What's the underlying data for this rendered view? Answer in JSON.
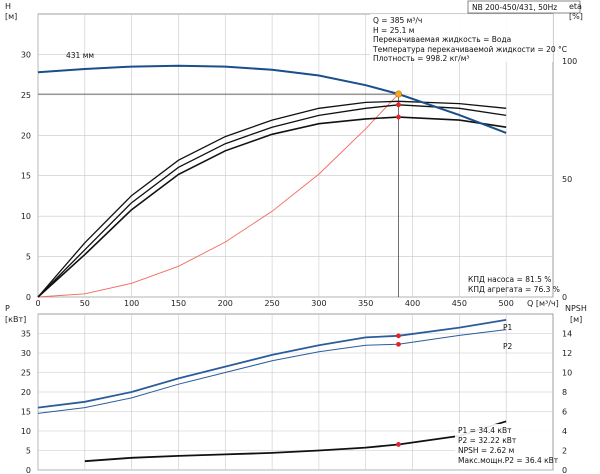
{
  "pump_model": "NB 200-450/431, 50Hz",
  "colors": {
    "head_curve": "#1a4f8a",
    "system_curve": "#f26a5c",
    "power_curve": "#2a5d9c",
    "eta_curve": "#111111",
    "npsh_curve": "#111111",
    "op_point": "#f5a623",
    "marker": "#e0242a",
    "grid": "#c8c8c8"
  },
  "chart_data": [
    {
      "type": "line",
      "id": "head_chart",
      "ylabel": "H",
      "yunit": "[м]",
      "y2label": "eta",
      "y2unit": "[%]",
      "xlabel": "Q [м³/ч]",
      "xlim": [
        0,
        550
      ],
      "ylim": [
        0,
        35
      ],
      "y2lim": [
        0,
        120
      ],
      "x_ticks": [
        0,
        50,
        100,
        150,
        200,
        250,
        300,
        350,
        400,
        450,
        500
      ],
      "y_ticks": [
        0,
        5,
        10,
        15,
        20,
        25,
        30
      ],
      "y2_ticks": [
        0,
        50,
        100
      ],
      "curve_label": "431 мм",
      "series": [
        {
          "key": "head",
          "x": [
            0,
            50,
            100,
            150,
            200,
            250,
            300,
            350,
            385,
            450,
            500
          ],
          "y": [
            27.8,
            28.2,
            28.5,
            28.6,
            28.5,
            28.1,
            27.4,
            26.2,
            25.1,
            22.5,
            20.3
          ]
        },
        {
          "key": "system",
          "x": [
            0,
            50,
            100,
            150,
            200,
            250,
            300,
            350,
            385
          ],
          "y": [
            0,
            0.4,
            1.7,
            3.8,
            6.8,
            10.6,
            15.2,
            20.8,
            25.1
          ]
        },
        {
          "key": "eta_pump",
          "x": [
            0,
            50,
            100,
            150,
            200,
            250,
            300,
            350,
            385,
            450,
            500
          ],
          "y": [
            0,
            20,
            40,
            55,
            65,
            72,
            77,
            80,
            81.5,
            80,
            77
          ]
        },
        {
          "key": "eta_pump_b",
          "x": [
            0,
            50,
            100,
            150,
            200,
            250,
            300,
            350,
            385,
            450,
            500
          ],
          "y": [
            0,
            23,
            43,
            58,
            68,
            75,
            80,
            82.5,
            83,
            82,
            80
          ]
        },
        {
          "key": "eta_unit",
          "x": [
            0,
            50,
            100,
            150,
            200,
            250,
            300,
            350,
            385,
            450,
            500
          ],
          "y": [
            0,
            18,
            37,
            52,
            62,
            69,
            73.5,
            75.5,
            76.3,
            75,
            72
          ]
        }
      ],
      "operating_point": {
        "x": 385,
        "y": 25.1
      },
      "eta_markers": [
        81.5,
        76.3
      ],
      "info_box": [
        "Q = 385 м³/ч",
        "H = 25.1 м",
        "Перекачиваемая жидкость = Вода",
        "Температура перекачиваемой жидкости = 20 °C",
        "Плотность = 998.2 кг/м³"
      ],
      "efficiency_text": [
        "КПД насоса = 81.5 %",
        "КПД агрегата = 76.3 %"
      ]
    },
    {
      "type": "line",
      "id": "power_chart",
      "ylabel": "P",
      "yunit": "[кВт]",
      "y2label": "NPSH",
      "y2unit": "[м]",
      "xlim": [
        0,
        550
      ],
      "ylim": [
        0,
        40
      ],
      "y2lim": [
        0,
        16
      ],
      "y_ticks": [
        0,
        5,
        10,
        15,
        20,
        25,
        30,
        35
      ],
      "y2_ticks": [
        0,
        2,
        4,
        6,
        8,
        10,
        12,
        14
      ],
      "series": [
        {
          "key": "P1",
          "name": "P1",
          "x": [
            0,
            50,
            100,
            150,
            200,
            250,
            300,
            350,
            385,
            450,
            500
          ],
          "y": [
            16,
            17.5,
            20,
            23.5,
            26.5,
            29.5,
            32,
            34,
            34.4,
            36.5,
            38.5
          ]
        },
        {
          "key": "P2",
          "name": "P2",
          "x": [
            0,
            50,
            100,
            150,
            200,
            250,
            300,
            350,
            385,
            450,
            500
          ],
          "y": [
            14.5,
            16,
            18.5,
            22,
            25,
            28,
            30.3,
            32,
            32.22,
            34.5,
            36
          ]
        },
        {
          "key": "NPSH",
          "x": [
            50,
            100,
            150,
            200,
            250,
            300,
            350,
            385,
            450,
            500
          ],
          "y": [
            0.9,
            1.25,
            1.45,
            1.6,
            1.75,
            2.0,
            2.3,
            2.62,
            3.5,
            5.0
          ]
        }
      ],
      "markers": {
        "P1": 34.4,
        "P2": 32.22,
        "NPSH": 2.62,
        "x": 385
      },
      "info_box": [
        "P1 = 34.4 кВт",
        "P2 = 32.22 кВт",
        "NPSH = 2.62 м",
        "Макс.мощн.P2 = 36.4 кВт"
      ]
    }
  ]
}
